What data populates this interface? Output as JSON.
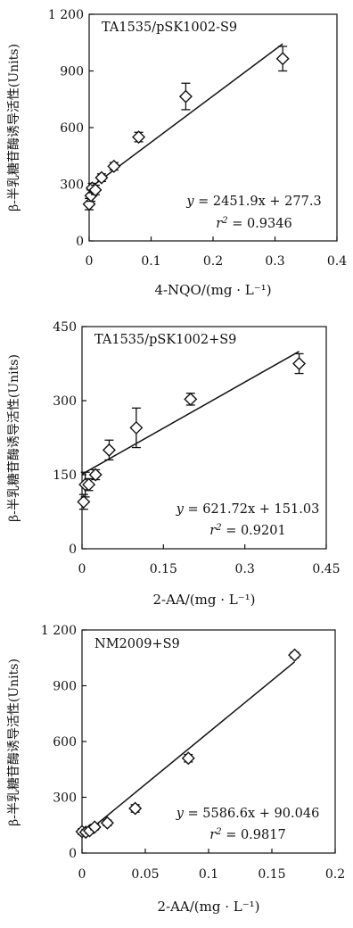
{
  "chart_data": [
    {
      "type": "scatter",
      "label": "TA1535/pSK1002-S9",
      "xlabel": "4-NQO/(mg · L⁻¹)",
      "ylabel": "β-半乳糖苷酶诱导活性(Units)",
      "xlim": [
        0,
        0.4
      ],
      "ylim": [
        0,
        1200
      ],
      "xticks": [
        "0",
        "0.1",
        "0.2",
        "0.3",
        "0.4"
      ],
      "yticks": [
        "0",
        "300",
        "600",
        "900",
        "1 200"
      ],
      "points": [
        {
          "x": 0.0,
          "y": 195,
          "err": 30
        },
        {
          "x": 0.003,
          "y": 240,
          "err": 30
        },
        {
          "x": 0.005,
          "y": 280,
          "err": 25
        },
        {
          "x": 0.01,
          "y": 270,
          "err": 25
        },
        {
          "x": 0.02,
          "y": 335,
          "err": 20
        },
        {
          "x": 0.04,
          "y": 395,
          "err": 20
        },
        {
          "x": 0.08,
          "y": 550,
          "err": 25
        },
        {
          "x": 0.156,
          "y": 765,
          "err": 70
        },
        {
          "x": 0.3125,
          "y": 965,
          "err": 65
        }
      ],
      "fit": {
        "slope": 2451.9,
        "intercept": 277.3,
        "x_range": [
          0,
          0.3125
        ]
      },
      "equation": {
        "left": "y",
        "rest": " = 2451.9x + 277.3"
      },
      "r2": {
        "label": "r",
        "value": " = 0.9346"
      }
    },
    {
      "type": "scatter",
      "label": "TA1535/pSK1002+S9",
      "xlabel": "2-AA/(mg · L⁻¹)",
      "ylabel": "β-半乳糖苷酶诱导活性(Units)",
      "xlim": [
        0,
        0.45
      ],
      "ylim": [
        0,
        450
      ],
      "xticks": [
        "0",
        "0.15",
        "0.3",
        "0.45"
      ],
      "yticks": [
        "0",
        "150",
        "300",
        "450"
      ],
      "points": [
        {
          "x": 0.003,
          "y": 95,
          "err": 15
        },
        {
          "x": 0.006,
          "y": 130,
          "err": 25
        },
        {
          "x": 0.0125,
          "y": 130,
          "err": 12
        },
        {
          "x": 0.025,
          "y": 150,
          "err": 10
        },
        {
          "x": 0.05,
          "y": 200,
          "err": 20
        },
        {
          "x": 0.1,
          "y": 245,
          "err": 40
        },
        {
          "x": 0.2,
          "y": 303,
          "err": 12
        },
        {
          "x": 0.4,
          "y": 375,
          "err": 20
        }
      ],
      "fit": {
        "slope": 621.72,
        "intercept": 151.03,
        "x_range": [
          0,
          0.4
        ]
      },
      "equation": {
        "left": "y",
        "rest": " = 621.72x + 151.03"
      },
      "r2": {
        "label": "r",
        "value": " = 0.9201"
      }
    },
    {
      "type": "scatter",
      "label": "NM2009+S9",
      "xlabel": "2-AA/(mg · L⁻¹)",
      "ylabel": "β-半乳糖苷酶诱导活性(Units)",
      "xlim": [
        0,
        0.2
      ],
      "ylim": [
        0,
        1200
      ],
      "xticks": [
        "0",
        "0.05",
        "0.1",
        "0.15",
        "0.2"
      ],
      "yticks": [
        "0",
        "300",
        "600",
        "900",
        "1 200"
      ],
      "points": [
        {
          "x": 0.0,
          "y": 115,
          "err": 15
        },
        {
          "x": 0.003,
          "y": 112,
          "err": 15
        },
        {
          "x": 0.006,
          "y": 120,
          "err": 15
        },
        {
          "x": 0.01,
          "y": 140,
          "err": 15
        },
        {
          "x": 0.02,
          "y": 162,
          "err": 15
        },
        {
          "x": 0.042,
          "y": 240,
          "err": 20
        },
        {
          "x": 0.084,
          "y": 510,
          "err": 20
        },
        {
          "x": 0.168,
          "y": 1065,
          "err": 15
        }
      ],
      "fit": {
        "slope": 5586.6,
        "intercept": 90.046,
        "x_range": [
          0,
          0.168
        ]
      },
      "equation": {
        "left": "y",
        "rest": " = 5586.6x + 90.046"
      },
      "r2": {
        "label": "r",
        "value": " = 0.9817"
      }
    }
  ]
}
